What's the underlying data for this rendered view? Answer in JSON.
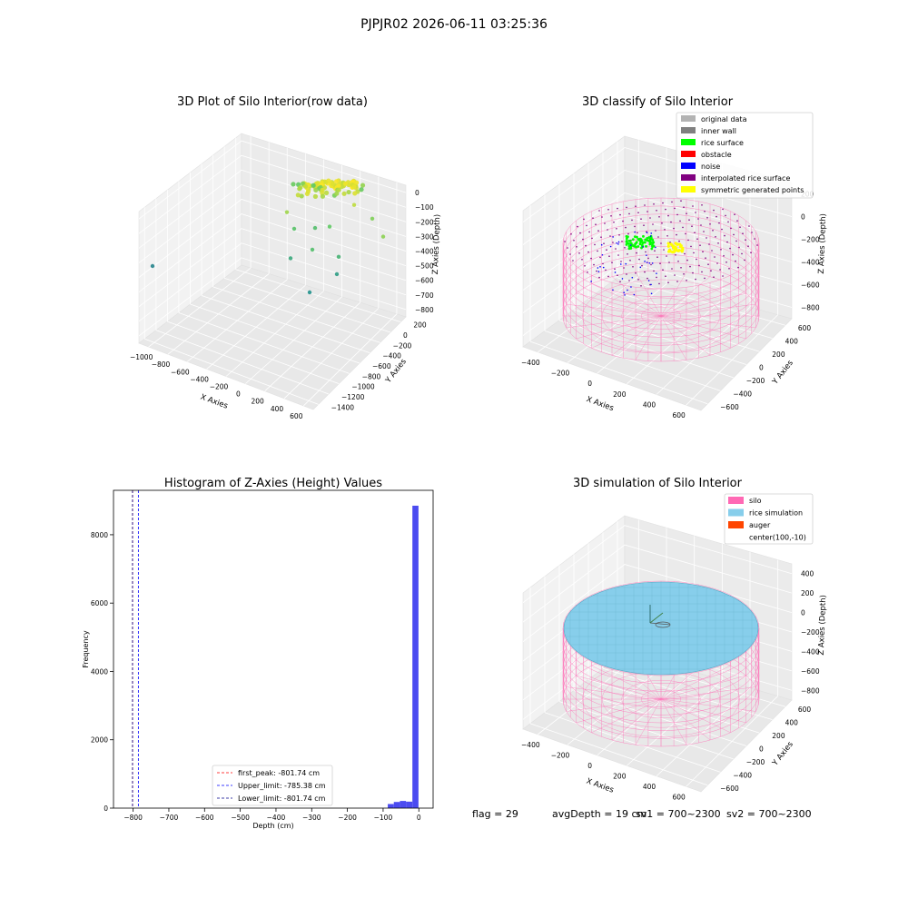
{
  "suptitle": "PJPJR02 2026-06-11 03:25:36",
  "status_line": {
    "flag": "flag = 29",
    "avg_depth": "avgDepth = 19 cm",
    "sv1": "sv1 = 700~2300",
    "sv2": "sv2 = 700~2300"
  },
  "colors": {
    "original_data": "#b3b3b3",
    "inner_wall": "#808080",
    "rice_surface": "#00ff00",
    "obstacle": "#ff0000",
    "noise": "#0000ff",
    "interpolated_rice_surface": "#800080",
    "symmetric_generated_points": "#ffff00",
    "silo": "#ff69b4",
    "rice_simulation": "#87ceeb",
    "auger": "#ff4500",
    "histogram_bar": "#4b4bf0"
  },
  "chart_data": [
    {
      "type": "scatter",
      "projection": "3d",
      "title": "3D Plot of Silo Interior(row data)",
      "xlabel": "X Axies",
      "ylabel": "Y Axies",
      "zlabel": "Z Axies (Depth)",
      "xticks": [
        "−1000",
        "−800",
        "−600",
        "−400",
        "−200",
        "0",
        "200",
        "400",
        "600"
      ],
      "yticks": [
        "200",
        "0",
        "−200",
        "−400",
        "−600",
        "−800",
        "−1000",
        "−1200",
        "−1400"
      ],
      "zticks": [
        "0",
        "−100",
        "−200",
        "−300",
        "−400",
        "−500",
        "−600",
        "−700",
        "−800"
      ],
      "colormap": "viridis",
      "points_depth": [
        -20,
        -10,
        -5,
        0,
        -15,
        -30,
        -40,
        -60,
        -80,
        -120,
        -150,
        -190,
        -230,
        -280,
        -300,
        -350,
        -400,
        -480,
        -520,
        -600,
        -640,
        -720,
        -800
      ]
    },
    {
      "type": "scatter",
      "projection": "3d",
      "title": "3D classify of Silo Interior",
      "xlabel": "X Axies",
      "ylabel": "Y Axies",
      "zlabel": "Z Axies (Depth)",
      "xticks": [
        "−400",
        "−200",
        "0",
        "200",
        "400",
        "600"
      ],
      "yticks": [
        "600",
        "400",
        "200",
        "0",
        "−200",
        "−400",
        "−600"
      ],
      "zticks": [
        "200",
        "0",
        "−200",
        "−400",
        "−600",
        "−800"
      ],
      "legend_position": "top-right",
      "legend": [
        {
          "label": "original data",
          "color_key": "original_data"
        },
        {
          "label": "inner wall",
          "color_key": "inner_wall"
        },
        {
          "label": "rice surface",
          "color_key": "rice_surface"
        },
        {
          "label": "obstacle",
          "color_key": "obstacle"
        },
        {
          "label": "noise",
          "color_key": "noise"
        },
        {
          "label": "interpolated rice surface",
          "color_key": "interpolated_rice_surface"
        },
        {
          "label": "symmetric generated points",
          "color_key": "symmetric_generated_points"
        }
      ]
    },
    {
      "type": "bar",
      "title": "Histogram of Z-Axies (Height) Values",
      "xlabel": "Depth (cm)",
      "ylabel": "Frequency",
      "xlim": [
        -855,
        40
      ],
      "ylim": [
        0,
        9300
      ],
      "xticks": [
        -800,
        -700,
        -600,
        -500,
        -400,
        -300,
        -200,
        -100,
        0
      ],
      "yticks": [
        0,
        2000,
        4000,
        6000,
        8000
      ],
      "bins": [
        {
          "x0": -87,
          "x1": -70,
          "count": 120
        },
        {
          "x0": -70,
          "x1": -53,
          "count": 180
        },
        {
          "x0": -53,
          "x1": -36,
          "count": 210
        },
        {
          "x0": -36,
          "x1": -18,
          "count": 190
        },
        {
          "x0": -18,
          "x1": -1,
          "count": 8850
        }
      ],
      "vlines": [
        {
          "label": "first_peak: -801.74 cm",
          "x": -801.74,
          "color": "#ff0000"
        },
        {
          "label": "Upper_limit: -785.38 cm",
          "x": -785.38,
          "color": "#0000ff"
        },
        {
          "label": "Lower_limit: -801.74 cm",
          "x": -801.74,
          "color": "#00008b"
        }
      ],
      "legend_position": "lower-center"
    },
    {
      "type": "scatter",
      "projection": "3d",
      "title": "3D simulation of Silo Interior",
      "xlabel": "X Axies",
      "ylabel": "Y Axies",
      "zlabel": "Z Axies (Depth)",
      "xticks": [
        "−400",
        "−200",
        "0",
        "200",
        "400",
        "600"
      ],
      "yticks": [
        "600",
        "400",
        "200",
        "0",
        "−200",
        "−400",
        "−600"
      ],
      "zticks": [
        "400",
        "200",
        "0",
        "−200",
        "−400",
        "−600",
        "−800"
      ],
      "legend_position": "top-right",
      "legend": [
        {
          "label": "silo",
          "color_key": "silo"
        },
        {
          "label": "rice simulation",
          "color_key": "rice_simulation"
        },
        {
          "label": "auger",
          "color_key": "auger"
        },
        {
          "label": "center(100,-10)",
          "color_key": ""
        }
      ]
    }
  ]
}
